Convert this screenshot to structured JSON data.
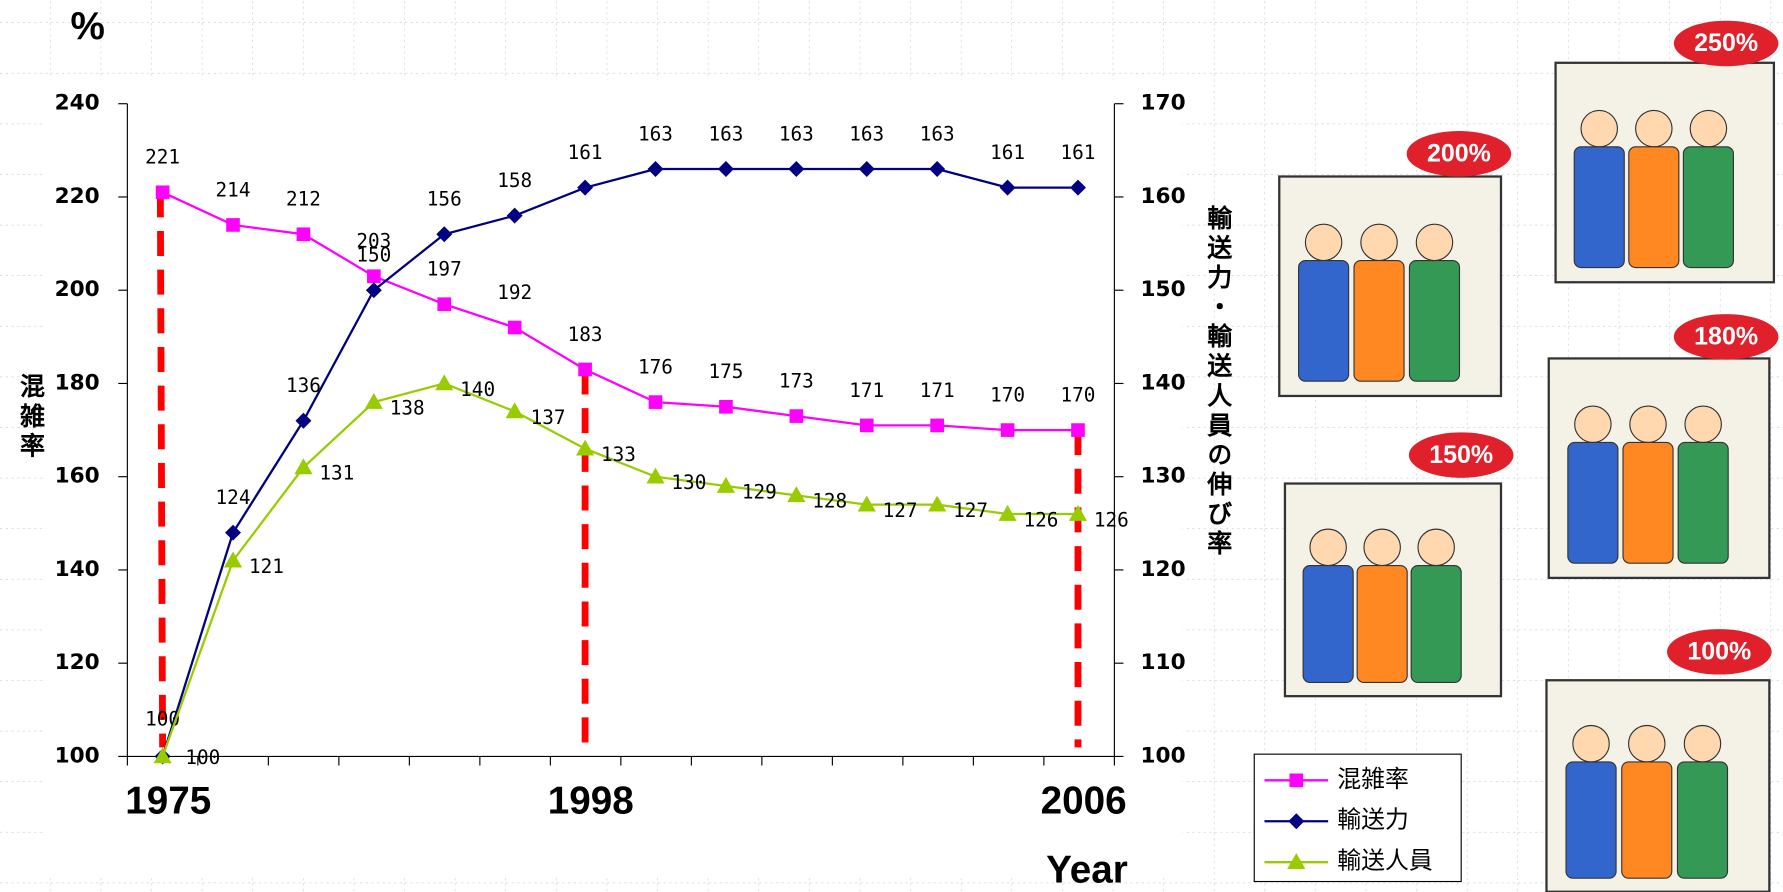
{
  "chart_data": {
    "type": "line",
    "y_unit": "%",
    "y_label": "混雑率",
    "y2_label": "輸送力・輸送人員の伸び率",
    "x_label": "Year",
    "categories": [
      "1975",
      null,
      null,
      null,
      null,
      null,
      "1998",
      null,
      null,
      null,
      null,
      null,
      null,
      "2006"
    ],
    "ylim": [
      100,
      240
    ],
    "yticks": [
      100,
      120,
      140,
      160,
      180,
      200,
      220,
      240
    ],
    "y2lim": [
      100,
      170
    ],
    "y2ticks": [
      100,
      110,
      120,
      130,
      140,
      150,
      160,
      170
    ],
    "series": [
      {
        "name": "混雑率",
        "color": "#ff00ff",
        "marker": "square",
        "values": [
          221,
          214,
          212,
          203,
          197,
          192,
          183,
          176,
          175,
          173,
          171,
          171,
          170,
          170
        ]
      },
      {
        "name": "輸送力",
        "color": "#000080",
        "marker": "diamond",
        "axis": "y2",
        "values": [
          100,
          124,
          136,
          150,
          156,
          158,
          161,
          163,
          163,
          163,
          163,
          163,
          161,
          161
        ]
      },
      {
        "name": "輸送人員",
        "color": "#99cc00",
        "marker": "triangle",
        "axis": "y2",
        "values": [
          100,
          121,
          131,
          138,
          140,
          137,
          133,
          130,
          129,
          128,
          127,
          127,
          126,
          126
        ]
      }
    ],
    "legend": "bottom-right"
  },
  "illustrations": [
    {
      "label": "250%"
    },
    {
      "label": "200%"
    },
    {
      "label": "180%"
    },
    {
      "label": "150%"
    },
    {
      "label": "100%"
    }
  ]
}
